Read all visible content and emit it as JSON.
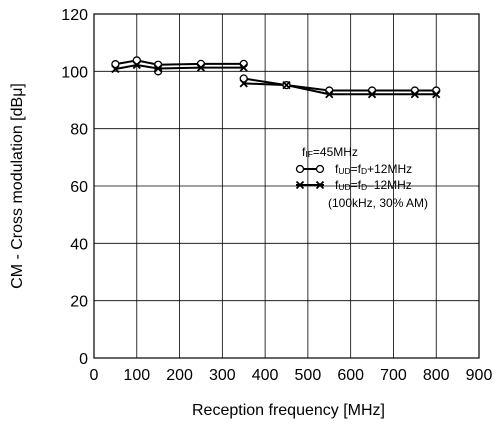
{
  "chart_data": {
    "type": "line",
    "xlabel": "Reception frequency [MHz]",
    "ylabel": "CM - Cross modulation [dBμ]",
    "xlim": [
      0,
      900
    ],
    "ylim": [
      0,
      120
    ],
    "xticks": [
      0,
      100,
      200,
      300,
      400,
      500,
      600,
      700,
      800,
      900
    ],
    "yticks": [
      0,
      20,
      40,
      60,
      80,
      100,
      120
    ],
    "grid": true,
    "series": [
      {
        "name": "fUD=fD+12MHz",
        "marker": "circle",
        "segments": [
          [
            [
              50,
              102.5
            ],
            [
              100,
              103.8
            ],
            [
              150,
              102.3
            ],
            [
              250,
              102.6
            ],
            [
              350,
              102.6
            ]
          ],
          [
            [
              350,
              97.5
            ],
            [
              450,
              95.2
            ],
            [
              550,
              93.3
            ],
            [
              650,
              93.3
            ],
            [
              750,
              93.3
            ],
            [
              800,
              93.3
            ]
          ]
        ],
        "extra_points": [
          [
            150,
            100
          ]
        ]
      },
      {
        "name": "fUD=fD−12MHz",
        "marker": "x",
        "segments": [
          [
            [
              50,
              100.8
            ],
            [
              100,
              102.2
            ],
            [
              150,
              101.0
            ],
            [
              250,
              101.3
            ],
            [
              350,
              101.3
            ]
          ],
          [
            [
              350,
              95.8
            ],
            [
              450,
              95.2
            ],
            [
              550,
              92.0
            ],
            [
              650,
              92.0
            ],
            [
              750,
              92.0
            ],
            [
              800,
              92.0
            ]
          ]
        ],
        "extra_points": []
      }
    ],
    "annotation": {
      "fif": {
        "main": "f",
        "sub": "IF",
        "rest": "=45MHz"
      },
      "legend1": {
        "main": "f",
        "sub": "UD",
        "eq": "=f",
        "sub2": "D",
        "rest": "+12MHz"
      },
      "legend2": {
        "main": "f",
        "sub": "UD",
        "eq": "=f",
        "sub2": "D",
        "rest": "–12MHz"
      },
      "condition": "(100kHz, 30% AM)"
    }
  }
}
